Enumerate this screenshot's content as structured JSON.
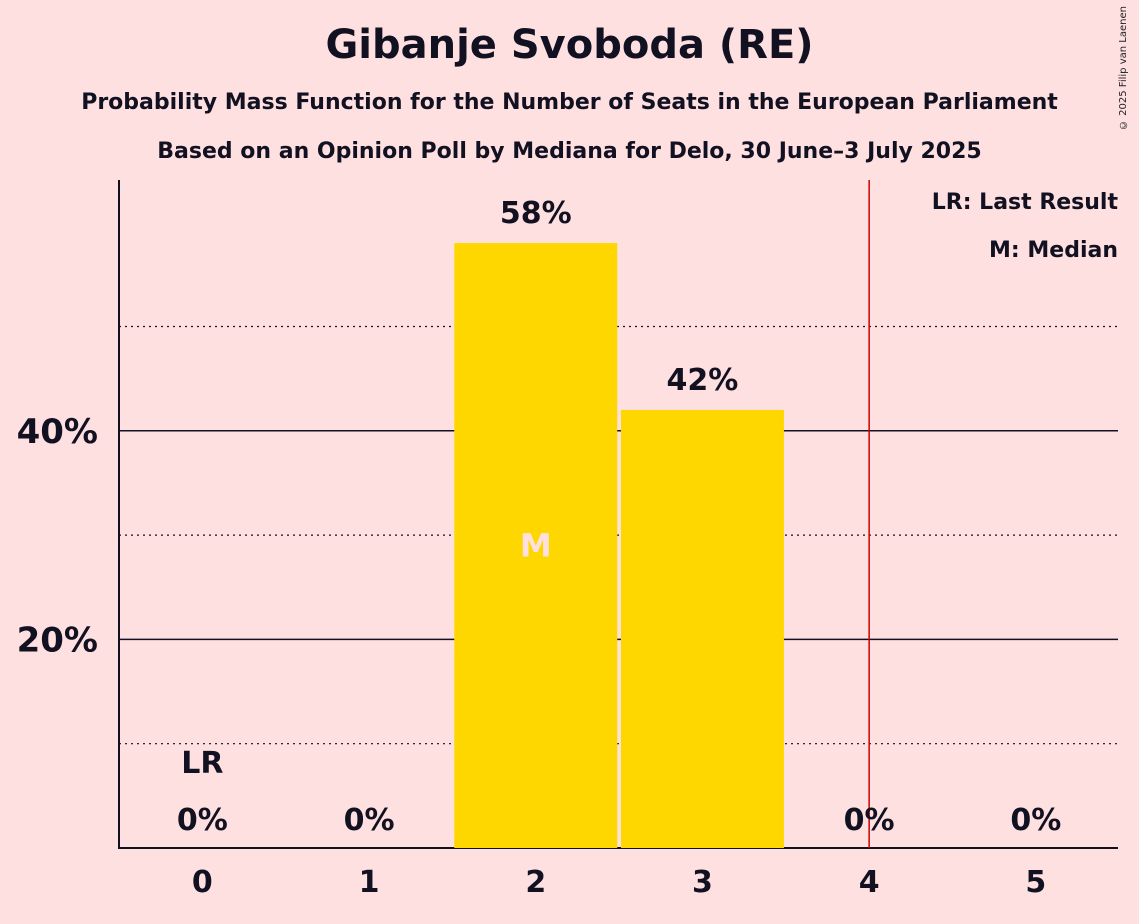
{
  "header": {
    "title": "Gibanje Svoboda (RE)",
    "subtitle": "Probability Mass Function for the Number of Seats in the European Parliament",
    "poll": "Based on an Opinion Poll by Mediana for Delo, 30 June–3 July 2025",
    "copyright": "© 2025 Filip van Laenen"
  },
  "legend": {
    "last_result": "LR: Last Result",
    "median": "M: Median"
  },
  "colors": {
    "background": "#FFE0E0",
    "bar": "#FFD700",
    "last_result_line": "#CC0000",
    "median_label": "#FFE0E0",
    "text": "#111122"
  },
  "chart_data": {
    "type": "bar",
    "categories": [
      "0",
      "1",
      "2",
      "3",
      "4",
      "5"
    ],
    "values": [
      0,
      0,
      58,
      42,
      0,
      0
    ],
    "value_labels": [
      "0%",
      "0%",
      "58%",
      "42%",
      "0%",
      "0%"
    ],
    "ylim": [
      0,
      60
    ],
    "y_ticks": [
      {
        "value": 20,
        "label": "20%"
      },
      {
        "value": 40,
        "label": "40%"
      }
    ],
    "minor_gridlines": [
      10,
      30,
      50
    ],
    "last_result": {
      "seats": 0,
      "label": "LR",
      "line_at": 4.5
    },
    "median": {
      "seats": 2,
      "label": "M"
    },
    "grid": true,
    "legend_position": "top-right"
  }
}
